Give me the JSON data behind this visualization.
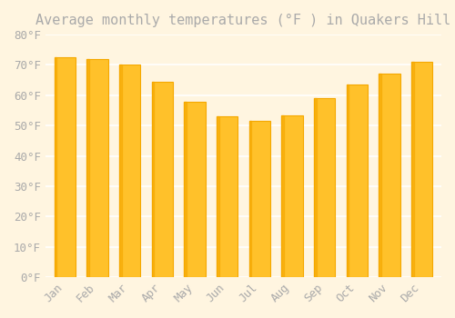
{
  "title": "Average monthly temperatures (°F ) in Quakers Hill",
  "months": [
    "Jan",
    "Feb",
    "Mar",
    "Apr",
    "May",
    "Jun",
    "Jul",
    "Aug",
    "Sep",
    "Oct",
    "Nov",
    "Dec"
  ],
  "values": [
    72.5,
    72.0,
    70.0,
    64.5,
    58.0,
    53.0,
    51.5,
    53.5,
    59.0,
    63.5,
    67.0,
    71.0
  ],
  "bar_color_main": "#FFC12A",
  "bar_color_edge": "#F5A800",
  "background_color": "#FFF5E0",
  "grid_color": "#FFFFFF",
  "text_color": "#AAAAAA",
  "ylim": [
    0,
    80
  ],
  "yticks": [
    0,
    10,
    20,
    30,
    40,
    50,
    60,
    70,
    80
  ],
  "ytick_labels": [
    "0°F",
    "10°F",
    "20°F",
    "30°F",
    "40°F",
    "50°F",
    "60°F",
    "70°F",
    "80°F"
  ],
  "title_fontsize": 11,
  "tick_fontsize": 9,
  "font_family": "monospace"
}
